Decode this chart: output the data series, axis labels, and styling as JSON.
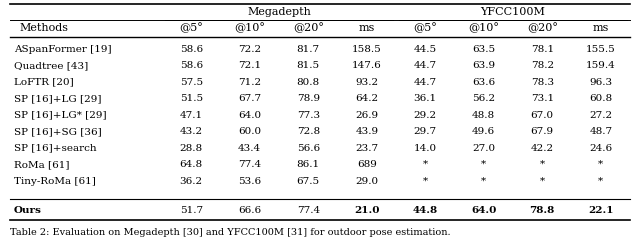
{
  "title": "Table 2: Evaluation on Megadepth [30] and YFCC100M [31] for outdoor pose estimation.",
  "rows": [
    [
      "ASpanFormer [19]",
      "58.6",
      "72.2",
      "81.7",
      "158.5",
      "44.5",
      "63.5",
      "78.1",
      "155.5"
    ],
    [
      "Quadtree [43]",
      "58.6",
      "72.1",
      "81.5",
      "147.6",
      "44.7",
      "63.9",
      "78.2",
      "159.4"
    ],
    [
      "LoFTR [20]",
      "57.5",
      "71.2",
      "80.8",
      "93.2",
      "44.7",
      "63.6",
      "78.3",
      "96.3"
    ],
    [
      "SP [16]+LG [29]",
      "51.5",
      "67.7",
      "78.9",
      "64.2",
      "36.1",
      "56.2",
      "73.1",
      "60.8"
    ],
    [
      "SP [16]+LG* [29]",
      "47.1",
      "64.0",
      "77.3",
      "26.9",
      "29.2",
      "48.8",
      "67.0",
      "27.2"
    ],
    [
      "SP [16]+SG [36]",
      "43.2",
      "60.0",
      "72.8",
      "43.9",
      "29.7",
      "49.6",
      "67.9",
      "48.7"
    ],
    [
      "SP [16]+search",
      "28.8",
      "43.4",
      "56.6",
      "23.7",
      "14.0",
      "27.0",
      "42.2",
      "24.6"
    ],
    [
      "RoMa [61]",
      "64.8",
      "77.4",
      "86.1",
      "689",
      "*",
      "*",
      "*",
      "*"
    ],
    [
      "Tiny-RoMa [61]",
      "36.2",
      "53.6",
      "67.5",
      "29.0",
      "*",
      "*",
      "*",
      "*"
    ]
  ],
  "ours_row": [
    "Ours",
    "51.7",
    "66.6",
    "77.4",
    "21.0",
    "44.8",
    "64.0",
    "78.8",
    "22.1"
  ],
  "bold_ours": [
    false,
    false,
    false,
    true,
    true,
    true,
    true,
    true
  ],
  "mega_label": "Megadepth",
  "yfcc_label": "YFCC100M",
  "methods_label": "Methods",
  "sub_headers": [
    "@5°",
    "@10°",
    "@20°",
    "ms",
    "@5°",
    "@10°",
    "@20°",
    "ms"
  ],
  "background_color": "#ffffff",
  "text_color": "#000000",
  "font_size": 7.5
}
